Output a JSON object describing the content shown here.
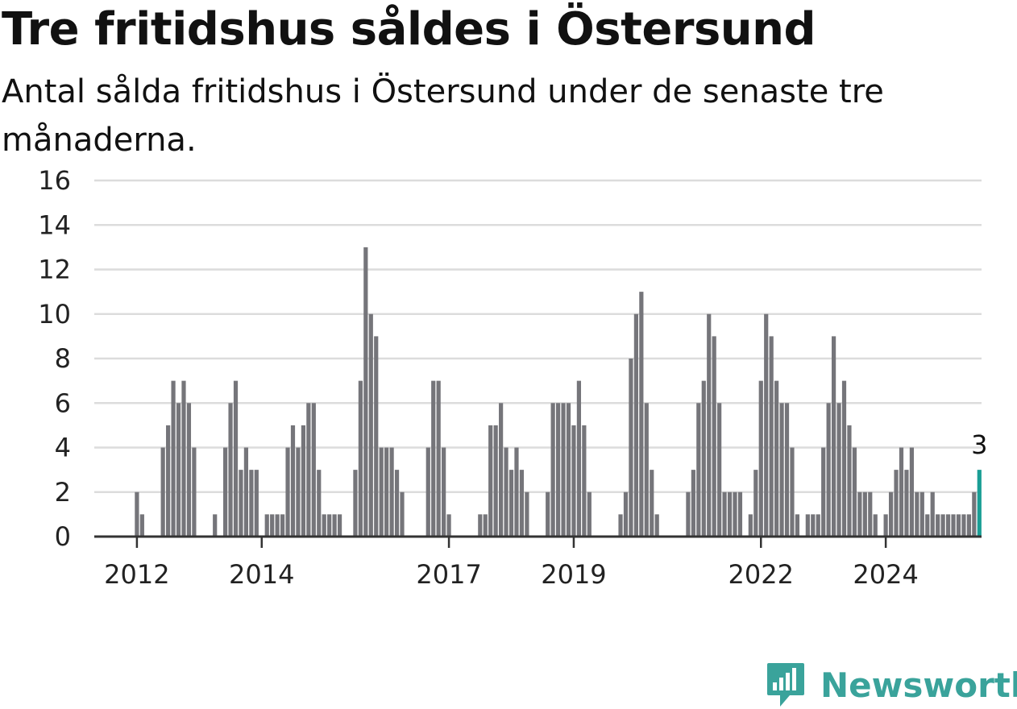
{
  "chart_data": {
    "type": "bar",
    "title": "Tre fritidshus såldes i Östersund",
    "subtitle": "Antal sålda fritidshus i Östersund under de senaste tre månaderna.",
    "xlabel": "",
    "ylabel": "",
    "ylim": [
      0,
      16
    ],
    "yticks": [
      0,
      2,
      4,
      6,
      8,
      10,
      12,
      14,
      16
    ],
    "x_tick_labels": [
      "2012",
      "2014",
      "2017",
      "2019",
      "2022",
      "2024"
    ],
    "grid": true,
    "bar_color": "#75757a",
    "highlight_color": "#1a9e95",
    "highlight_label": "3",
    "values": [
      2,
      1,
      0,
      0,
      0,
      4,
      5,
      7,
      6,
      7,
      6,
      4,
      0,
      0,
      0,
      1,
      0,
      4,
      6,
      7,
      3,
      4,
      3,
      3,
      0,
      1,
      1,
      1,
      1,
      4,
      5,
      4,
      5,
      6,
      6,
      3,
      1,
      1,
      1,
      1,
      0,
      0,
      3,
      7,
      13,
      10,
      9,
      4,
      4,
      4,
      3,
      2,
      0,
      0,
      0,
      0,
      4,
      7,
      7,
      4,
      1,
      0,
      0,
      0,
      0,
      0,
      1,
      1,
      5,
      5,
      6,
      4,
      3,
      4,
      3,
      2,
      0,
      0,
      0,
      2,
      6,
      6,
      6,
      6,
      5,
      7,
      5,
      2,
      0,
      0,
      0,
      0,
      0,
      1,
      2,
      8,
      10,
      11,
      6,
      3,
      1,
      0,
      0,
      0,
      0,
      0,
      2,
      3,
      6,
      7,
      10,
      9,
      6,
      2,
      2,
      2,
      2,
      0,
      1,
      3,
      7,
      10,
      9,
      7,
      6,
      6,
      4,
      1,
      0,
      1,
      1,
      1,
      4,
      6,
      9,
      6,
      7,
      5,
      4,
      2,
      2,
      2,
      1,
      0,
      1,
      2,
      3,
      4,
      3,
      4,
      2,
      2,
      1,
      2,
      1,
      1,
      1,
      1,
      1,
      1,
      1,
      2,
      3
    ]
  },
  "brand": {
    "name": "Newsworthy",
    "color": "#3aa39b",
    "icon": "newsworthy-logo-icon"
  }
}
